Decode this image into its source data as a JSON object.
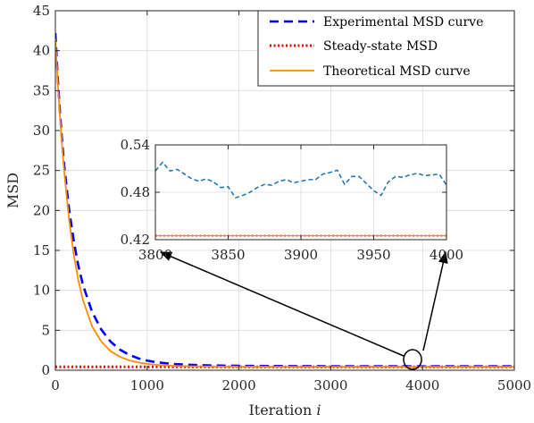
{
  "chart_data": [
    {
      "type": "line",
      "xlabel": "Iteration",
      "xlabel_italic": "i",
      "ylabel": "MSD",
      "xlim": [
        0,
        5000
      ],
      "ylim": [
        0,
        45
      ],
      "xticks": [
        0,
        1000,
        2000,
        3000,
        4000,
        5000
      ],
      "yticks": [
        0,
        5,
        10,
        15,
        20,
        25,
        30,
        35,
        40,
        45
      ],
      "grid": true,
      "legend_position": "top-right",
      "series": [
        {
          "name": "Experimental MSD curve",
          "color": "#0000ff",
          "style": "dashed",
          "x": [
            0,
            25,
            50,
            75,
            100,
            150,
            200,
            250,
            300,
            400,
            500,
            600,
            700,
            800,
            900,
            1000,
            1100,
            1200,
            1300,
            1400,
            1500,
            1700,
            2000,
            2500,
            3000,
            3500,
            4000,
            4500,
            5000
          ],
          "y": [
            42.2,
            36.8,
            32.3,
            28.4,
            25.2,
            20.1,
            16.2,
            13.1,
            10.7,
            7.3,
            5.1,
            3.6,
            2.6,
            1.95,
            1.5,
            1.2,
            1.0,
            0.88,
            0.78,
            0.71,
            0.66,
            0.6,
            0.55,
            0.52,
            0.5,
            0.5,
            0.49,
            0.5,
            0.5
          ]
        },
        {
          "name": "Steady-state MSD",
          "color": "#ff0000",
          "style": "dotted",
          "x": [
            0,
            5000
          ],
          "y": [
            0.425,
            0.425
          ]
        },
        {
          "name": "Theoretical MSD curve",
          "color": "#ff8c00",
          "style": "solid",
          "x": [
            0,
            25,
            50,
            75,
            100,
            150,
            200,
            250,
            300,
            400,
            500,
            600,
            700,
            800,
            900,
            1000,
            1100,
            1200,
            1300,
            1400,
            1500,
            1700,
            2000,
            2500,
            3000,
            3500,
            4000,
            4500,
            5000
          ],
          "y": [
            41.5,
            36.3,
            31.8,
            27.8,
            24.4,
            18.8,
            14.5,
            11.3,
            8.8,
            5.5,
            3.6,
            2.4,
            1.7,
            1.25,
            0.98,
            0.8,
            0.68,
            0.6,
            0.55,
            0.51,
            0.49,
            0.46,
            0.44,
            0.43,
            0.425,
            0.425,
            0.425,
            0.425,
            0.425
          ]
        }
      ]
    },
    {
      "type": "line",
      "role": "inset",
      "xlim": [
        3800,
        4000
      ],
      "ylim": [
        0.42,
        0.54
      ],
      "xticks": [
        3800,
        3850,
        3900,
        3950,
        4000
      ],
      "yticks": [
        0.42,
        0.48,
        0.54
      ],
      "ytick_labels": [
        "0.42",
        "0.48",
        "0.54"
      ],
      "grid": true,
      "series": [
        {
          "color": "#1f77b4",
          "style": "dashed",
          "x": [
            3800,
            3805,
            3810,
            3815,
            3820,
            3825,
            3830,
            3835,
            3840,
            3845,
            3850,
            3855,
            3860,
            3865,
            3870,
            3875,
            3880,
            3885,
            3890,
            3895,
            3900,
            3905,
            3910,
            3915,
            3920,
            3925,
            3930,
            3935,
            3940,
            3945,
            3950,
            3955,
            3960,
            3965,
            3970,
            3975,
            3980,
            3985,
            3990,
            3995,
            4000
          ],
          "y": [
            0.507,
            0.518,
            0.507,
            0.509,
            0.503,
            0.497,
            0.494,
            0.497,
            0.493,
            0.486,
            0.487,
            0.473,
            0.476,
            0.48,
            0.486,
            0.49,
            0.489,
            0.494,
            0.496,
            0.492,
            0.494,
            0.496,
            0.496,
            0.503,
            0.505,
            0.508,
            0.49,
            0.5,
            0.5,
            0.491,
            0.482,
            0.476,
            0.493,
            0.5,
            0.499,
            0.502,
            0.504,
            0.501,
            0.502,
            0.503,
            0.489
          ]
        },
        {
          "color": "#ff0000",
          "style": "dotted",
          "x": [
            3800,
            4000
          ],
          "y": [
            0.425,
            0.425
          ]
        },
        {
          "color": "#ff8c00",
          "style": "solid",
          "x": [
            3800,
            4000
          ],
          "y": [
            0.425,
            0.425
          ]
        }
      ]
    }
  ]
}
